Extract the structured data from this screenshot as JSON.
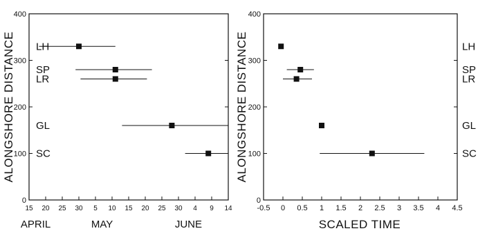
{
  "chart_data": [
    {
      "type": "scatter",
      "ylabel": "ALONGSHORE DISTANCE",
      "xlabel": "",
      "ylim": [
        0,
        400
      ],
      "yticks": [
        "0",
        "100",
        "200",
        "300",
        "400"
      ],
      "xlim": [
        15,
        75
      ],
      "xticks": [
        {
          "day": 15,
          "label": "15"
        },
        {
          "day": 20,
          "label": "20"
        },
        {
          "day": 25,
          "label": "25"
        },
        {
          "day": 30,
          "label": "30"
        },
        {
          "day": 35,
          "label": "5"
        },
        {
          "day": 40,
          "label": "10"
        },
        {
          "day": 45,
          "label": "15"
        },
        {
          "day": 50,
          "label": "20"
        },
        {
          "day": 55,
          "label": "25"
        },
        {
          "day": 60,
          "label": "30"
        },
        {
          "day": 65,
          "label": "4"
        },
        {
          "day": 70,
          "label": "9"
        },
        {
          "day": 75,
          "label": "14"
        }
      ],
      "month_labels": [
        {
          "day": 17,
          "label": "APRIL"
        },
        {
          "day": 37,
          "label": "MAY"
        },
        {
          "day": 63,
          "label": "JUNE"
        }
      ],
      "points": [
        {
          "site": "LH",
          "y": 330,
          "x": 30,
          "xmin": 18,
          "xmax": 41
        },
        {
          "site": "SP",
          "y": 280,
          "x": 41,
          "xmin": 29,
          "xmax": 52
        },
        {
          "site": "LR",
          "y": 260,
          "x": 41,
          "xmin": 30.5,
          "xmax": 50.5
        },
        {
          "site": "GL",
          "y": 160,
          "x": 58,
          "xmin": 43,
          "xmax": 76
        },
        {
          "site": "SC",
          "y": 100,
          "x": 69,
          "xmin": 62,
          "xmax": 79
        }
      ]
    },
    {
      "type": "scatter",
      "ylabel": "ALONGSHORE DISTANCE",
      "xlabel": "SCALED TIME",
      "ylim": [
        0,
        400
      ],
      "yticks": [
        "0",
        "100",
        "200",
        "300",
        "400"
      ],
      "xlim": [
        -0.5,
        4.5
      ],
      "xticks": [
        {
          "value": -0.5,
          "label": "-0.5"
        },
        {
          "value": 0,
          "label": "0"
        },
        {
          "value": 0.5,
          "label": "0.5"
        },
        {
          "value": 1,
          "label": "1"
        },
        {
          "value": 1.5,
          "label": "1.5"
        },
        {
          "value": 2,
          "label": "2"
        },
        {
          "value": 2.5,
          "label": "2.5"
        },
        {
          "value": 3,
          "label": "3"
        },
        {
          "value": 3.5,
          "label": "3.5"
        },
        {
          "value": 4,
          "label": "4"
        },
        {
          "value": 4.5,
          "label": "4.5"
        }
      ],
      "points": [
        {
          "site": "LH",
          "y": 330,
          "x": -0.05
        },
        {
          "site": "SP",
          "y": 280,
          "x": 0.45,
          "xmin": 0.1,
          "xmax": 0.8
        },
        {
          "site": "LR",
          "y": 260,
          "x": 0.35,
          "xmin": 0.0,
          "xmax": 0.75
        },
        {
          "site": "GL",
          "y": 160,
          "x": 1.0
        },
        {
          "site": "SC",
          "y": 100,
          "x": 2.3,
          "xmin": 0.95,
          "xmax": 3.65
        }
      ]
    }
  ]
}
